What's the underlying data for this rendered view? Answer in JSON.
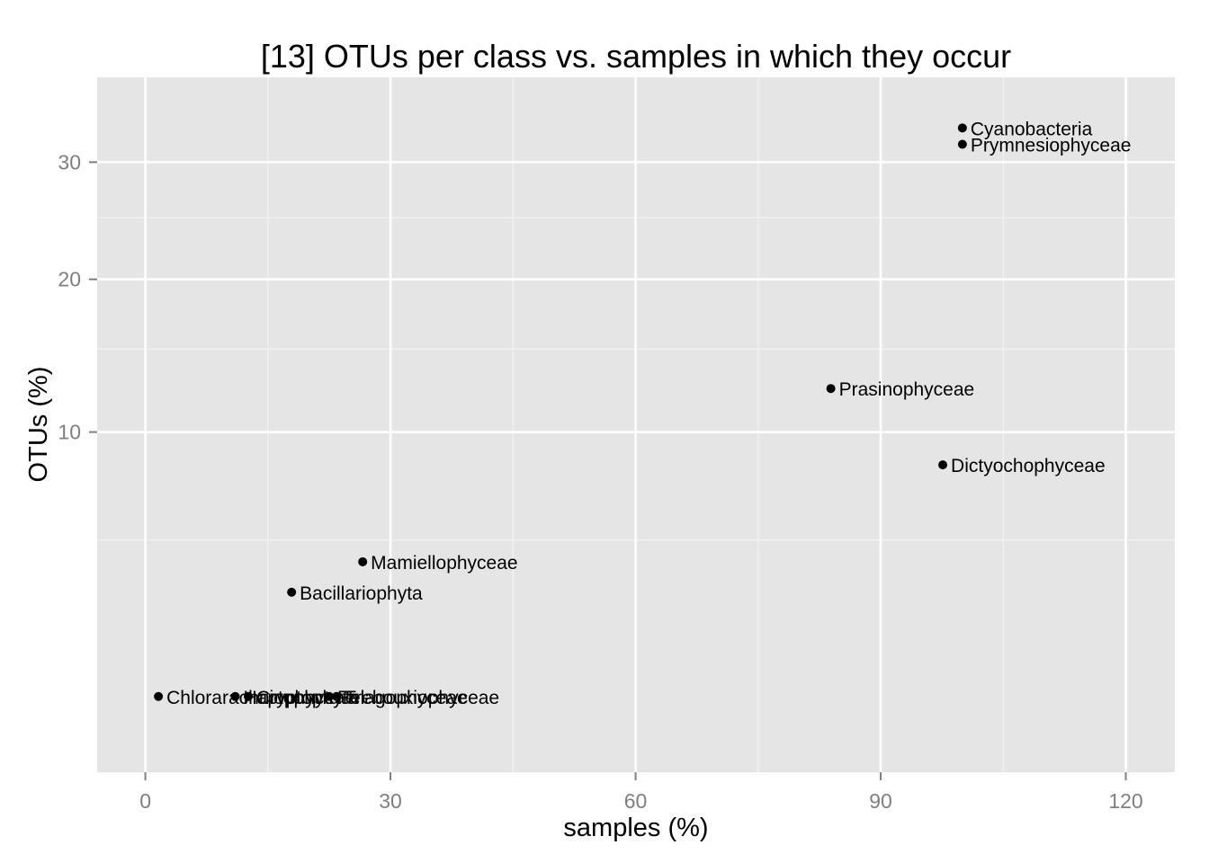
{
  "chart_data": {
    "type": "scatter",
    "title": "[13] OTUs per class vs. samples in which they occur",
    "xlabel": "samples (%)",
    "ylabel": "OTUs (%)",
    "x_scale": "linear",
    "y_scale": "sqrt",
    "xlim": [
      -5.9,
      126
    ],
    "ylim": [
      0.06,
      38.5
    ],
    "x_ticks": [
      0,
      30,
      60,
      90,
      120
    ],
    "x_tick_labels": [
      "0",
      "30",
      "60",
      "90",
      "120"
    ],
    "x_minor_ticks": [
      15,
      45,
      75,
      105
    ],
    "y_ticks": [
      10,
      20,
      30
    ],
    "y_tick_labels": [
      "10",
      "20",
      "30"
    ],
    "y_minor_ticks": [
      5,
      15,
      25
    ],
    "grid": true,
    "legend": "none",
    "point_color": "#000000",
    "panel_color": "#e5e5e5",
    "grid_color": "#ffffff",
    "points": [
      {
        "label": "Cyanobacteria",
        "x": 100.0,
        "y": 33.3
      },
      {
        "label": "Prymnesiophyceae",
        "x": 100.0,
        "y": 31.7
      },
      {
        "label": "Prasinophyceae",
        "x": 83.9,
        "y": 12.5
      },
      {
        "label": "Dictyochophyceae",
        "x": 97.6,
        "y": 8.3
      },
      {
        "label": "Mamiellophyceae",
        "x": 26.6,
        "y": 4.2
      },
      {
        "label": "Bacillariophyta",
        "x": 17.9,
        "y": 3.2
      },
      {
        "label": "Chlorarachniophyceae",
        "x": 1.6,
        "y": 0.8
      },
      {
        "label": "Haptophyta",
        "x": 11.0,
        "y": 0.8
      },
      {
        "label": "Cryptophyta",
        "x": 12.6,
        "y": 0.8
      },
      {
        "label": "Pelagophyceae",
        "x": 22.5,
        "y": 0.8
      },
      {
        "label": "Trebouxiophyceae",
        "x": 23.4,
        "y": 0.8
      }
    ]
  }
}
